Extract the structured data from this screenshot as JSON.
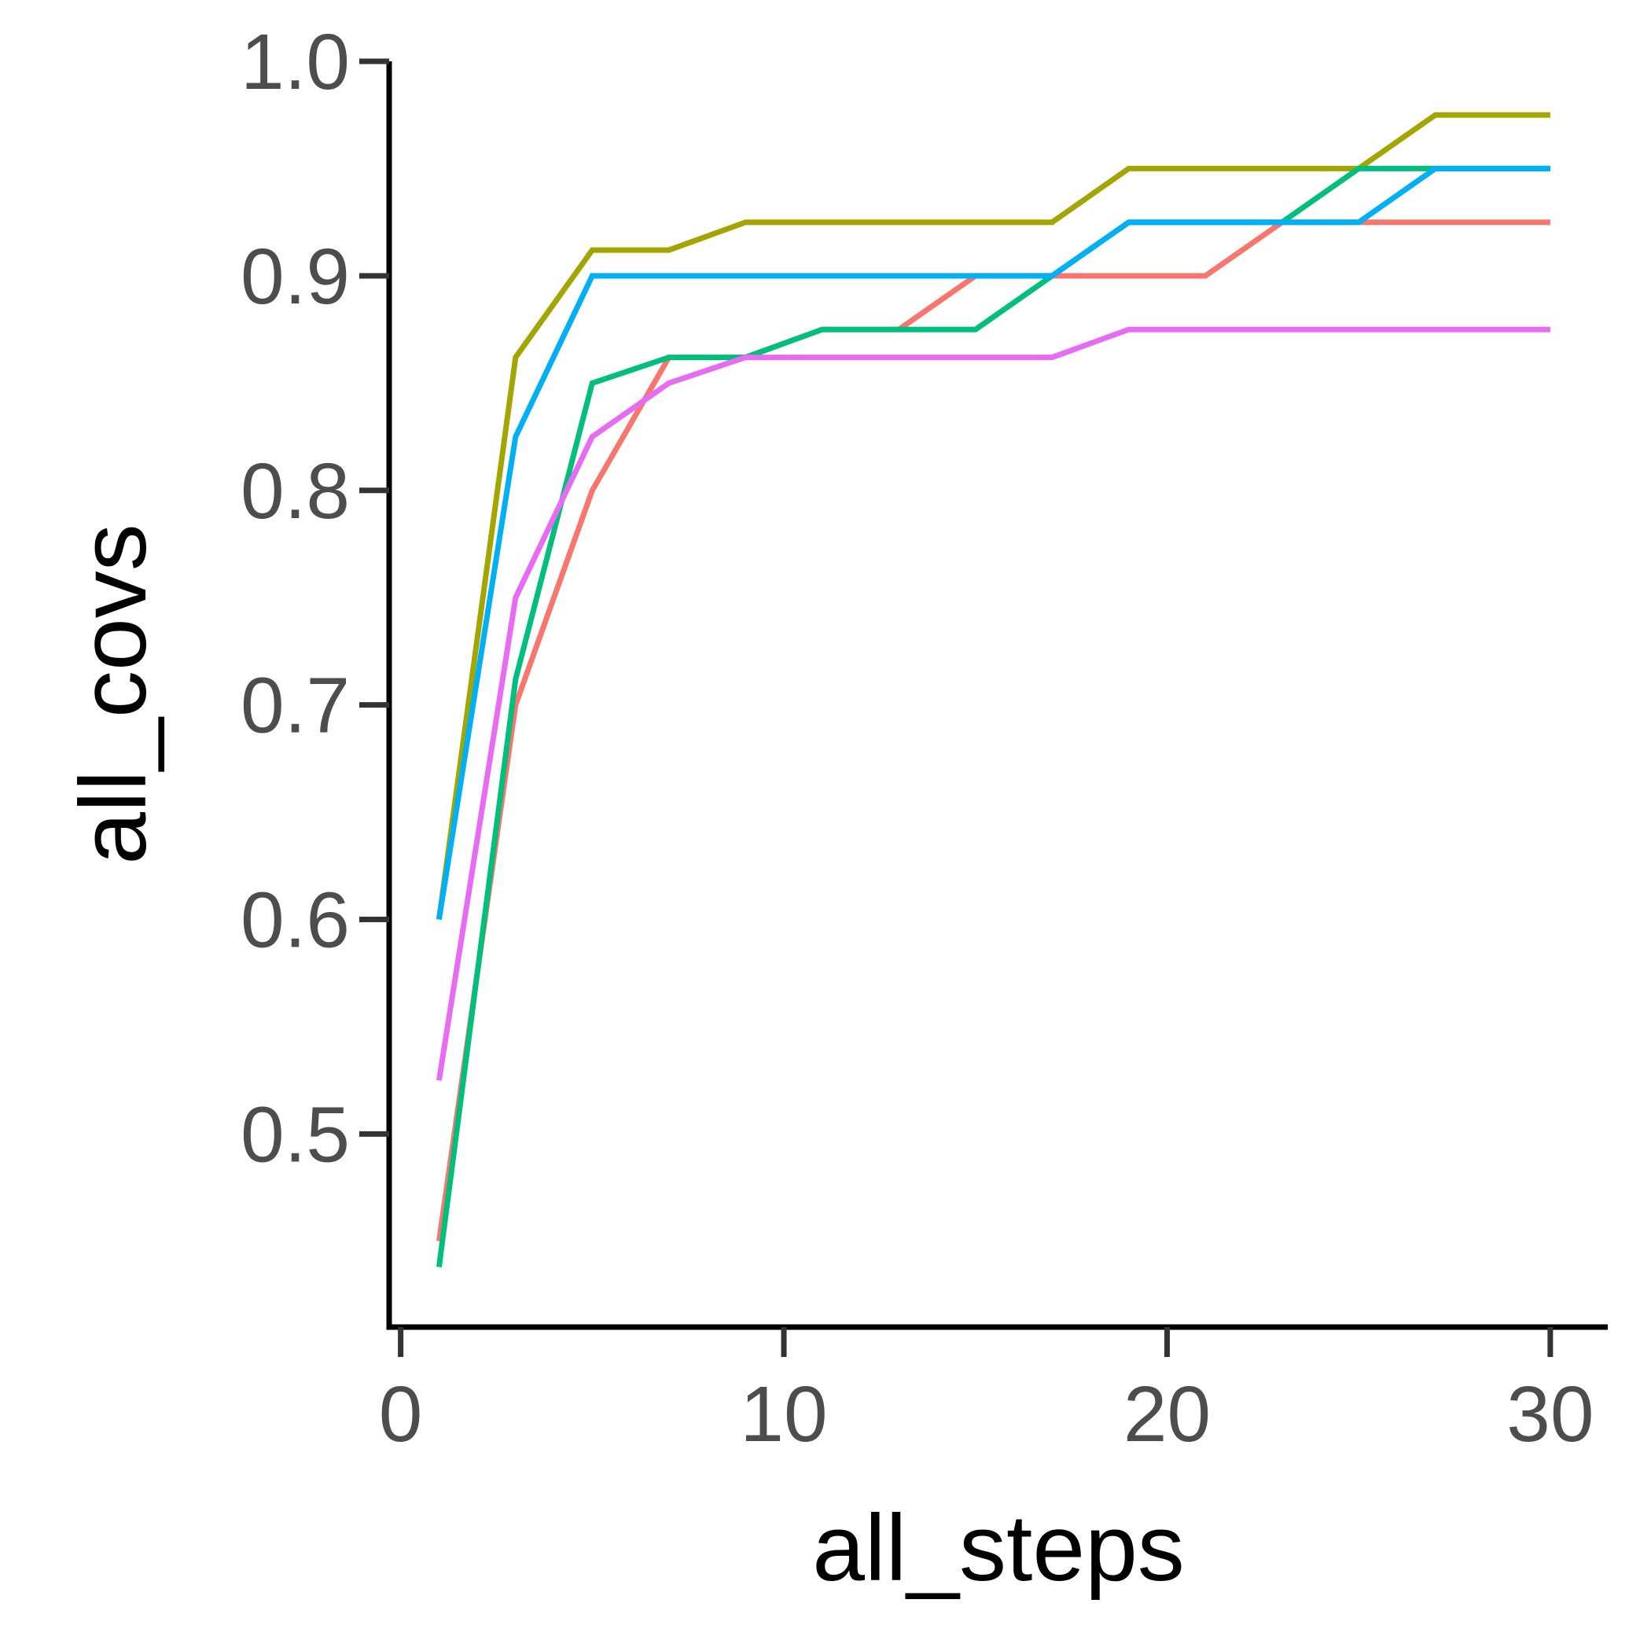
{
  "chart_data": {
    "type": "line",
    "xlabel": "all_steps",
    "ylabel": "all_covs",
    "xlim": [
      -0.3,
      31.5
    ],
    "ylim": [
      0.41,
      1.0
    ],
    "x_ticks": [
      0,
      10,
      20,
      30
    ],
    "x_tick_labels": [
      "0",
      "10",
      "20",
      "30"
    ],
    "y_ticks": [
      0.5,
      0.6,
      0.7,
      0.8,
      0.9,
      1.0
    ],
    "y_tick_labels": [
      "0.5",
      "0.6",
      "0.7",
      "0.8",
      "0.9",
      "1.0"
    ],
    "grid": false,
    "legend": "none",
    "x": [
      1,
      3,
      5,
      7,
      9,
      11,
      13,
      15,
      17,
      19,
      21,
      23,
      25,
      27,
      29,
      30
    ],
    "series": [
      {
        "color": "#F8766D",
        "values": [
          0.45,
          0.7,
          0.8,
          0.862,
          0.862,
          0.875,
          0.875,
          0.9,
          0.9,
          0.9,
          0.9,
          0.925,
          0.925,
          0.925,
          0.925,
          0.925
        ]
      },
      {
        "color": "#A3A500",
        "values": [
          0.6,
          0.862,
          0.912,
          0.912,
          0.925,
          0.925,
          0.925,
          0.925,
          0.925,
          0.95,
          0.95,
          0.95,
          0.95,
          0.975,
          0.975,
          0.975
        ]
      },
      {
        "color": "#00BF7D",
        "values": [
          0.438,
          0.712,
          0.85,
          0.862,
          0.862,
          0.875,
          0.875,
          0.875,
          0.9,
          0.925,
          0.925,
          0.925,
          0.95,
          0.95,
          0.95,
          0.95
        ]
      },
      {
        "color": "#00B0F6",
        "values": [
          0.6,
          0.825,
          0.9,
          0.9,
          0.9,
          0.9,
          0.9,
          0.9,
          0.9,
          0.925,
          0.925,
          0.925,
          0.925,
          0.95,
          0.95,
          0.95
        ]
      },
      {
        "color": "#E76BF3",
        "values": [
          0.525,
          0.75,
          0.825,
          0.85,
          0.862,
          0.862,
          0.862,
          0.862,
          0.862,
          0.875,
          0.875,
          0.875,
          0.875,
          0.875,
          0.875,
          0.875
        ]
      }
    ]
  }
}
